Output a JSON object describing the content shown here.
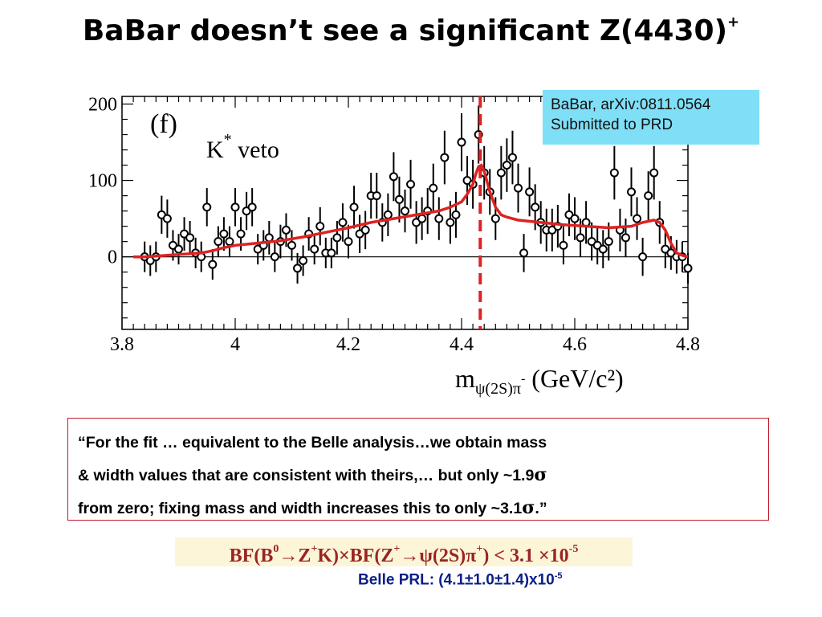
{
  "slide": {
    "title": "BaBar doesn’t see a significant Z(4430)",
    "title_sup": "+"
  },
  "cite": {
    "line1": "BaBar, arXiv:0811.0564",
    "line2": "Submitted to PRD"
  },
  "quote": {
    "line1": "“For the fit … equivalent to the Belle analysis…we obtain mass",
    "line2_text": "& width values that are consistent with theirs,… but only ~1.9",
    "line3_text": "from zero; fixing mass and width increases this to only ~3.1",
    "sigma": "σ",
    "line3_end": ".”"
  },
  "bf": {
    "p1": "BF(B",
    "p1_sup": "0",
    "p2": "→Z",
    "p2_sup": "+",
    "p3": "K)×BF(Z",
    "p3_sup": "+",
    "p4": "→ψ(2S)π",
    "p4_sup": "+",
    "p5": ") < 3.1 ×10",
    "p5_sup": "-5"
  },
  "belle": {
    "text": "Belle PRL:  (4.1±1.0±1.4)x10",
    "sup": "-5"
  },
  "colors": {
    "fit_curve": "#dd2222",
    "dashed_line": "#dd2222",
    "cite_bg": "#7fdff6",
    "quote_border": "#c01a2a",
    "bf_text": "#9a2424",
    "belle_text": "#0a1e86"
  },
  "chart_data": {
    "type": "scatter",
    "panel_label": "(f)",
    "annotation": "K* veto",
    "xlabel": "m_{ψ(2S)π-} (GeV/c²)",
    "ylabel": "",
    "xlim": [
      3.8,
      4.8
    ],
    "ylim": [
      -95,
      210
    ],
    "x_ticks": [
      3.8,
      4.0,
      4.2,
      4.4,
      4.6,
      4.8
    ],
    "x_tick_labels": [
      "3.8",
      "4",
      "4.2",
      "4.4",
      "4.6",
      "4.8"
    ],
    "y_ticks": [
      0,
      100,
      200
    ],
    "y_tick_labels": [
      "0",
      "100",
      "200"
    ],
    "vertical_marker_x": 4.433,
    "series": [
      {
        "kind": "data_points_with_errors",
        "x": [
          3.84,
          3.85,
          3.86,
          3.87,
          3.88,
          3.89,
          3.9,
          3.91,
          3.92,
          3.93,
          3.94,
          3.95,
          3.96,
          3.97,
          3.98,
          3.99,
          4.0,
          4.01,
          4.02,
          4.03,
          4.04,
          4.05,
          4.06,
          4.07,
          4.08,
          4.09,
          4.1,
          4.11,
          4.12,
          4.13,
          4.14,
          4.15,
          4.16,
          4.17,
          4.18,
          4.19,
          4.2,
          4.21,
          4.22,
          4.23,
          4.24,
          4.25,
          4.26,
          4.27,
          4.28,
          4.29,
          4.3,
          4.31,
          4.32,
          4.33,
          4.34,
          4.35,
          4.36,
          4.37,
          4.38,
          4.39,
          4.4,
          4.41,
          4.42,
          4.43,
          4.44,
          4.45,
          4.46,
          4.47,
          4.48,
          4.49,
          4.5,
          4.51,
          4.52,
          4.53,
          4.54,
          4.55,
          4.56,
          4.57,
          4.58,
          4.59,
          4.6,
          4.61,
          4.62,
          4.63,
          4.64,
          4.65,
          4.66,
          4.67,
          4.68,
          4.69,
          4.7,
          4.71,
          4.72,
          4.73,
          4.74,
          4.75,
          4.76,
          4.77,
          4.78,
          4.79,
          4.8
        ],
        "y": [
          0,
          -5,
          0,
          55,
          50,
          15,
          10,
          30,
          25,
          5,
          0,
          65,
          -10,
          20,
          30,
          20,
          65,
          30,
          60,
          65,
          10,
          15,
          25,
          0,
          20,
          35,
          15,
          -15,
          -5,
          30,
          10,
          40,
          5,
          5,
          25,
          45,
          20,
          65,
          30,
          35,
          80,
          80,
          45,
          55,
          105,
          75,
          60,
          95,
          45,
          50,
          60,
          90,
          50,
          130,
          45,
          55,
          150,
          100,
          95,
          160,
          110,
          85,
          50,
          110,
          120,
          130,
          90,
          5,
          85,
          65,
          45,
          35,
          35,
          40,
          15,
          55,
          50,
          25,
          45,
          20,
          15,
          10,
          20,
          110,
          35,
          25,
          85,
          50,
          0,
          80,
          110,
          45,
          10,
          5,
          0,
          0,
          -15
        ],
        "errors": [
          20,
          20,
          20,
          25,
          25,
          20,
          20,
          22,
          22,
          20,
          20,
          25,
          20,
          20,
          22,
          20,
          25,
          22,
          25,
          25,
          20,
          20,
          22,
          20,
          22,
          22,
          20,
          20,
          20,
          22,
          20,
          25,
          20,
          20,
          22,
          25,
          22,
          28,
          25,
          25,
          30,
          30,
          25,
          28,
          32,
          30,
          28,
          32,
          28,
          28,
          30,
          32,
          28,
          35,
          28,
          30,
          38,
          32,
          32,
          38,
          35,
          30,
          28,
          35,
          35,
          35,
          32,
          25,
          32,
          30,
          28,
          28,
          28,
          28,
          25,
          28,
          28,
          25,
          28,
          25,
          25,
          25,
          25,
          35,
          28,
          25,
          32,
          28,
          25,
          32,
          35,
          28,
          25,
          22,
          22,
          20,
          20
        ]
      },
      {
        "kind": "fit_curve",
        "x": [
          3.82,
          3.84,
          3.86,
          3.88,
          3.9,
          3.92,
          3.94,
          3.96,
          3.98,
          4.0,
          4.04,
          4.08,
          4.12,
          4.16,
          4.2,
          4.24,
          4.28,
          4.32,
          4.36,
          4.38,
          4.4,
          4.41,
          4.42,
          4.425,
          4.43,
          4.435,
          4.44,
          4.45,
          4.46,
          4.47,
          4.48,
          4.5,
          4.54,
          4.58,
          4.62,
          4.66,
          4.7,
          4.72,
          4.74,
          4.75,
          4.76,
          4.77,
          4.78,
          4.79,
          4.8
        ],
        "y": [
          0,
          0,
          1,
          2,
          3,
          4,
          5,
          8,
          12,
          15,
          18,
          21,
          26,
          32,
          38,
          45,
          50,
          55,
          60,
          65,
          72,
          82,
          95,
          108,
          118,
          120,
          112,
          85,
          65,
          55,
          52,
          48,
          45,
          42,
          40,
          38,
          40,
          45,
          48,
          45,
          35,
          18,
          5,
          2,
          0
        ]
      }
    ]
  }
}
